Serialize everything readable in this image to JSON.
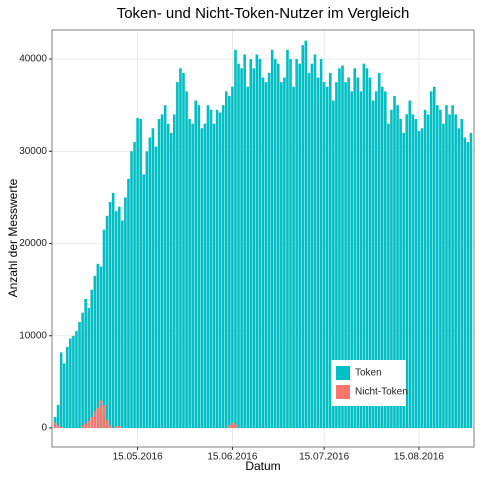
{
  "chart_data": {
    "type": "bar",
    "title": "Token- und Nicht-Token-Nutzer im Vergleich",
    "x_label": "Datum",
    "y_label": "Anzahl der Messwerte",
    "x": [
      "18.04.2016",
      "19.04.2016",
      "20.04.2016",
      "21.04.2016",
      "22.04.2016",
      "23.04.2016",
      "24.04.2016",
      "25.04.2016",
      "26.04.2016",
      "27.04.2016",
      "28.04.2016",
      "29.04.2016",
      "30.04.2016",
      "01.05.2016",
      "02.05.2016",
      "03.05.2016",
      "04.05.2016",
      "05.05.2016",
      "06.05.2016",
      "07.05.2016",
      "08.05.2016",
      "09.05.2016",
      "10.05.2016",
      "11.05.2016",
      "12.05.2016",
      "13.05.2016",
      "14.05.2016",
      "15.05.2016",
      "16.05.2016",
      "17.05.2016",
      "18.05.2016",
      "19.05.2016",
      "20.05.2016",
      "21.05.2016",
      "22.05.2016",
      "23.05.2016",
      "24.05.2016",
      "25.05.2016",
      "26.05.2016",
      "27.05.2016",
      "28.05.2016",
      "29.05.2016",
      "30.05.2016",
      "31.05.2016",
      "01.06.2016",
      "02.06.2016",
      "03.06.2016",
      "04.06.2016",
      "05.06.2016",
      "06.06.2016",
      "07.06.2016",
      "08.06.2016",
      "09.06.2016",
      "10.06.2016",
      "11.06.2016",
      "12.06.2016",
      "13.06.2016",
      "14.06.2016",
      "15.06.2016",
      "16.06.2016",
      "17.06.2016",
      "18.06.2016",
      "19.06.2016",
      "20.06.2016",
      "21.06.2016",
      "22.06.2016",
      "23.06.2016",
      "24.06.2016",
      "25.06.2016",
      "26.06.2016",
      "27.06.2016",
      "28.06.2016",
      "29.06.2016",
      "30.06.2016",
      "01.07.2016",
      "02.07.2016",
      "03.07.2016",
      "04.07.2016",
      "05.07.2016",
      "06.07.2016",
      "07.07.2016",
      "08.07.2016",
      "09.07.2016",
      "10.07.2016",
      "11.07.2016",
      "12.07.2016",
      "13.07.2016",
      "14.07.2016",
      "15.07.2016",
      "16.07.2016",
      "17.07.2016",
      "18.07.2016",
      "19.07.2016",
      "20.07.2016",
      "21.07.2016",
      "22.07.2016",
      "23.07.2016",
      "24.07.2016",
      "25.07.2016",
      "26.07.2016",
      "27.07.2016",
      "28.07.2016",
      "29.07.2016",
      "30.07.2016",
      "31.07.2016",
      "01.08.2016",
      "02.08.2016",
      "03.08.2016",
      "04.08.2016",
      "05.08.2016",
      "06.08.2016",
      "07.08.2016",
      "08.08.2016",
      "09.08.2016",
      "10.08.2016",
      "11.08.2016",
      "12.08.2016",
      "13.08.2016",
      "14.08.2016",
      "15.08.2016",
      "16.08.2016",
      "17.08.2016",
      "18.08.2016",
      "19.08.2016",
      "20.08.2016",
      "21.08.2016",
      "22.08.2016",
      "23.08.2016",
      "24.08.2016",
      "25.08.2016",
      "26.08.2016",
      "27.08.2016",
      "28.08.2016",
      "29.08.2016",
      "30.08.2016",
      "31.08.2016",
      "01.09.2016"
    ],
    "series": [
      {
        "name": "Token",
        "color": "#00BFC4",
        "values": [
          1200,
          2500,
          8200,
          7000,
          8800,
          9700,
          10000,
          10500,
          11500,
          12500,
          14000,
          13000,
          15000,
          16500,
          17800,
          17500,
          21500,
          23000,
          24500,
          25500,
          23500,
          24000,
          22500,
          25000,
          27000,
          30000,
          31000,
          33600,
          33500,
          27500,
          30000,
          31500,
          32500,
          30500,
          33500,
          34000,
          35000,
          33000,
          32000,
          34000,
          37500,
          39000,
          38500,
          36500,
          33500,
          33000,
          35500,
          35000,
          32500,
          33000,
          35000,
          34500,
          33000,
          34500,
          34200,
          35000,
          36500,
          36000,
          37000,
          41000,
          39500,
          39000,
          40500,
          37000,
          40000,
          39000,
          40500,
          40000,
          38000,
          37500,
          38500,
          41000,
          40000,
          39500,
          37500,
          38000,
          41000,
          40000,
          37000,
          40000,
          39500,
          41500,
          42000,
          38500,
          39500,
          40500,
          38000,
          40000,
          37500,
          37000,
          38500,
          35500,
          37500,
          39000,
          39300,
          37500,
          38000,
          36500,
          39000,
          38000,
          36500,
          39500,
          39000,
          38000,
          35500,
          36500,
          38500,
          37000,
          36500,
          33000,
          34500,
          36000,
          35000,
          33500,
          32000,
          34000,
          35500,
          34000,
          33500,
          32200,
          32500,
          34500,
          34000,
          36500,
          37000,
          35000,
          34500,
          33000,
          35000,
          34000,
          35000,
          34000,
          32500,
          33500,
          31500,
          31000,
          32000
        ]
      },
      {
        "name": "Nicht-Token",
        "color": "#F8766D",
        "values": [
          600,
          300,
          100,
          0,
          0,
          0,
          0,
          0,
          0,
          300,
          500,
          800,
          1200,
          1800,
          2200,
          3000,
          2500,
          900,
          300,
          0,
          200,
          200,
          0,
          0,
          0,
          0,
          0,
          0,
          0,
          0,
          0,
          0,
          0,
          0,
          0,
          0,
          0,
          0,
          0,
          0,
          0,
          0,
          0,
          0,
          0,
          0,
          0,
          0,
          0,
          0,
          0,
          0,
          0,
          0,
          0,
          0,
          0,
          300,
          600,
          400,
          0,
          0,
          0,
          0,
          0,
          0,
          0,
          0,
          0,
          0,
          0,
          0,
          0,
          0,
          0,
          0,
          0,
          0,
          0,
          0,
          0,
          0,
          0,
          0,
          0,
          0,
          0,
          0,
          0,
          0,
          0,
          0,
          0,
          0,
          0,
          0,
          0,
          0,
          0,
          0,
          0,
          0,
          0,
          0,
          0,
          0,
          0,
          0,
          0,
          0,
          0,
          0,
          0,
          0,
          0,
          0,
          0,
          0,
          0,
          0,
          0,
          0,
          0,
          0,
          0,
          0,
          0,
          0,
          0,
          0,
          0,
          0,
          0,
          0,
          0,
          0,
          0
        ]
      }
    ],
    "xlim": [
      "17.04.2016",
      "02.09.2016"
    ],
    "xticks": [
      "15.05.2016",
      "15.06.2016",
      "15.07.2016",
      "15.08.2016"
    ],
    "ylim": [
      -2060,
      43150
    ],
    "yticks": [
      0,
      10000,
      20000,
      30000,
      40000
    ],
    "grid": true,
    "legend": "bottom-right"
  }
}
